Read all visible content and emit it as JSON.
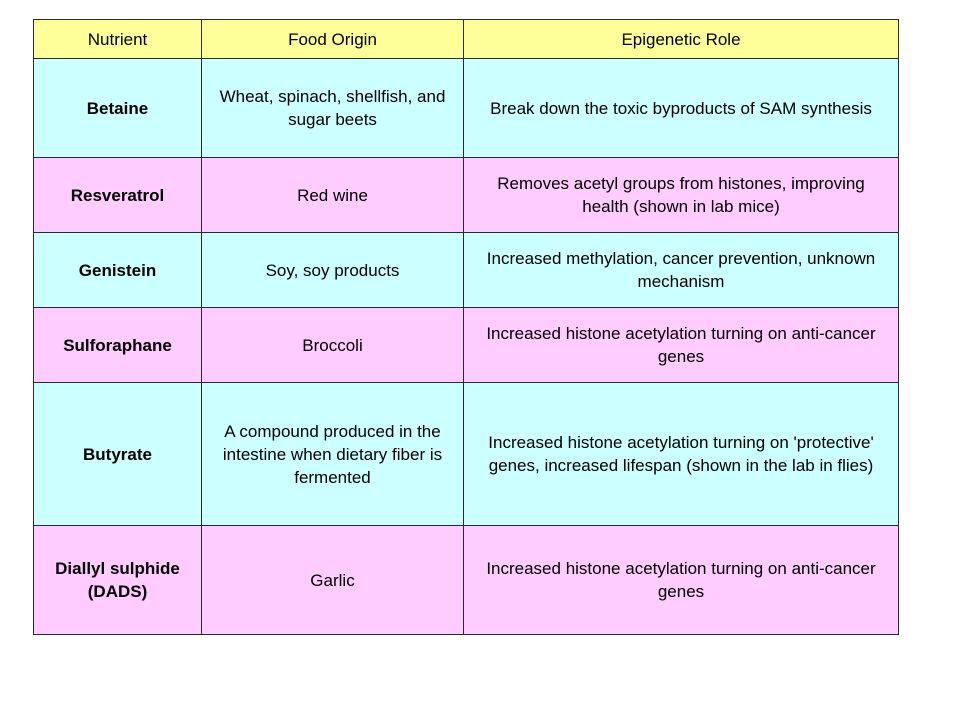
{
  "table": {
    "headers": {
      "nutrient": "Nutrient",
      "food_origin": "Food Origin",
      "epigenetic_role": "Epigenetic Role"
    },
    "rows": [
      {
        "nutrient": "Betaine",
        "food_origin": "Wheat, spinach, shellfish, and sugar beets",
        "epigenetic_role": "Break down the toxic byproducts of SAM synthesis",
        "color": "#ccffff"
      },
      {
        "nutrient": "Resveratrol",
        "food_origin": "Red wine",
        "epigenetic_role": "Removes acetyl groups from histones, improving health (shown in lab mice)",
        "color": "#ffccff"
      },
      {
        "nutrient": "Genistein",
        "food_origin": "Soy, soy products",
        "epigenetic_role": "Increased methylation, cancer prevention, unknown mechanism",
        "color": "#ccffff"
      },
      {
        "nutrient": "Sulforaphane",
        "food_origin": "Broccoli",
        "epigenetic_role": "Increased histone acetylation turning on anti-cancer genes",
        "color": "#ffccff"
      },
      {
        "nutrient": "Butyrate",
        "food_origin": "A compound produced in the intestine when dietary fiber is fermented",
        "epigenetic_role": "Increased histone acetylation turning on 'protective' genes, increased lifespan (shown in the lab in flies)",
        "color": "#ccffff"
      },
      {
        "nutrient": "Diallyl sulphide (DADS)",
        "food_origin": "Garlic",
        "epigenetic_role": "Increased histone acetylation turning on anti-cancer genes",
        "color": "#ffccff"
      }
    ],
    "header_color": "#ffff99"
  }
}
